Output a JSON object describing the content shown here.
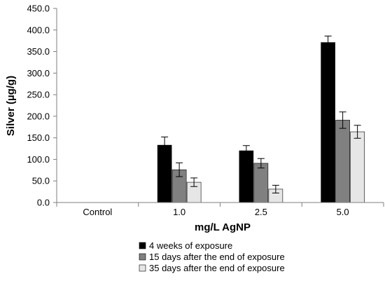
{
  "chart_data": {
    "type": "bar",
    "xlabel": "mg/L AgNP",
    "ylabel": "Silver (µg/g)",
    "ylim": [
      0,
      450
    ],
    "y_ticks": [
      "0.0",
      "50.0",
      "100.0",
      "150.0",
      "200.0",
      "250.0",
      "300.0",
      "350.0",
      "400.0",
      "450.0"
    ],
    "categories": [
      "Control",
      "1.0",
      "2.5",
      "5.0"
    ],
    "grid": false,
    "legend_position": "bottom",
    "series": [
      {
        "name": "4 weeks of exposure",
        "color": "#000000",
        "values": [
          0,
          133,
          120,
          371
        ],
        "errors": [
          0,
          19,
          12,
          15
        ]
      },
      {
        "name": "15 days after the end of exposure",
        "color": "#808080",
        "values": [
          0,
          76,
          91,
          191
        ],
        "errors": [
          0,
          16,
          11,
          19
        ]
      },
      {
        "name": "35 days after the end of exposure",
        "color": "#e6e6e6",
        "values": [
          0,
          47,
          31,
          164
        ],
        "errors": [
          0,
          10,
          9,
          15
        ]
      }
    ]
  }
}
